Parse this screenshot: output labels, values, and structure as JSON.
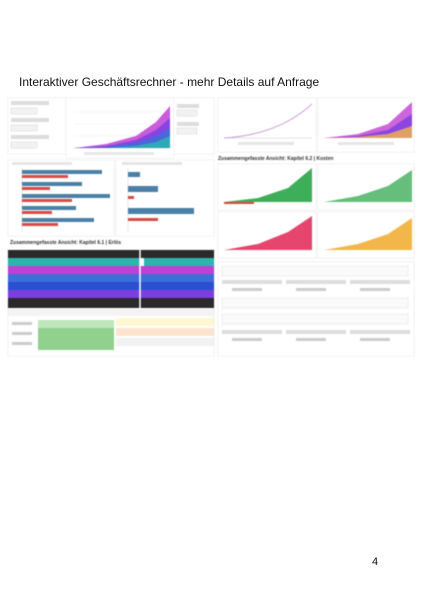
{
  "document": {
    "title": "Interaktiver Geschäftsrechner - mehr Details auf Anfrage",
    "page_number": "4"
  },
  "collage": {
    "section_left": "Zusammengefasste Ansicht: Kapitel 6.1 | Erlös",
    "section_right": "Zusammengefasste Ansicht: Kapitel 6.2 | Kosten",
    "colors": {
      "magenta": "#c03fd4",
      "purple": "#7b3fe0",
      "blue": "#3e6fd8",
      "teal": "#2cb5b0",
      "green": "#3fae5a",
      "pink": "#e6456e",
      "orange": "#f3b64a",
      "steel": "#4a7fa6",
      "red": "#d94a45",
      "dark": "#2a2a2a"
    }
  }
}
